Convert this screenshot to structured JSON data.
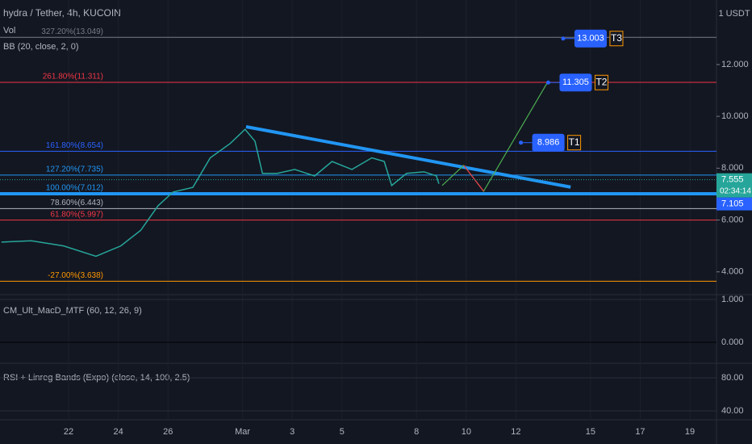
{
  "header": {
    "symbol": "hydra / Tether, 4h, KUCOIN",
    "vol": "Vol",
    "bb": "BB (20, close, 2, 0)"
  },
  "chart_data": {
    "type": "line",
    "currency": "1 USDT",
    "color": "#26a69a",
    "x": [
      -2.7,
      -1.5,
      -0.2,
      1.1,
      2.1,
      2.9,
      3.6,
      4.2,
      5.0,
      5.7,
      6.5,
      7.1,
      7.5,
      7.8,
      8.4,
      9.1,
      9.9,
      10.6,
      11.4,
      12.2,
      12.7,
      13.0,
      13.6,
      14.3,
      14.8,
      14.9
    ],
    "values": [
      5.15,
      5.2,
      5.0,
      4.6,
      5.0,
      5.6,
      6.55,
      7.08,
      7.26,
      8.4,
      8.95,
      9.5,
      9.04,
      7.8,
      7.8,
      7.95,
      7.7,
      8.26,
      7.95,
      8.4,
      8.26,
      7.33,
      7.8,
      7.86,
      7.7,
      7.4
    ],
    "xlim": [
      -2.76,
      26.07
    ],
    "ylim": [
      3.12,
      14.49
    ],
    "xticks": [
      {
        "value": 0,
        "label": "22"
      },
      {
        "value": 2,
        "label": "24"
      },
      {
        "value": 4,
        "label": "26"
      },
      {
        "value": 7,
        "label": "Mar"
      },
      {
        "value": 9,
        "label": "3"
      },
      {
        "value": 11,
        "label": "5"
      },
      {
        "value": 14,
        "label": "8"
      },
      {
        "value": 16,
        "label": "10"
      },
      {
        "value": 18,
        "label": "12"
      },
      {
        "value": 21,
        "label": "15"
      },
      {
        "value": 23,
        "label": "17"
      },
      {
        "value": 25,
        "label": "19"
      }
    ],
    "yticks": [
      {
        "value": 12,
        "label": "12.000"
      },
      {
        "value": 10,
        "label": "10.000"
      },
      {
        "value": 8,
        "label": "8.000"
      },
      {
        "value": 6,
        "label": "6.000"
      },
      {
        "value": 4,
        "label": "4.000"
      }
    ],
    "fib_levels": [
      {
        "value": 13.049,
        "label": "327.20%(13.049)",
        "color": "#787b86"
      },
      {
        "value": 11.311,
        "label": "261.80%(11.311)",
        "color": "#f23645"
      },
      {
        "value": 8.654,
        "label": "161.80%(8.654)",
        "color": "#2962ff"
      },
      {
        "value": 7.735,
        "label": "127.20%(7.735)",
        "color": "#2196f3"
      },
      {
        "value": 7.012,
        "label": "100.00%(7.012)",
        "color": "#2196f3"
      },
      {
        "value": 6.443,
        "label": "78.60%(6.443)",
        "color": "#b2b5be"
      },
      {
        "value": 5.997,
        "label": "61.80%(5.997)",
        "color": "#f23645"
      },
      {
        "value": 3.638,
        "label": "-27.00%(3.638)",
        "color": "#ff9800"
      }
    ],
    "targets": [
      {
        "value": 13.003,
        "name": "T3",
        "x": 19.9
      },
      {
        "value": 11.305,
        "name": "T2",
        "x": 19.3
      },
      {
        "value": 8.986,
        "name": "T1",
        "x": 18.2
      }
    ],
    "trendline": {
      "x": [
        7.14,
        20.2
      ],
      "values": [
        9.6,
        7.27
      ],
      "color": "#2196f3"
    },
    "projection_up": {
      "x": [
        15.03,
        15.9,
        16.7,
        19.25
      ],
      "values": [
        7.33,
        8.11,
        7.11,
        11.28
      ],
      "color": "#4caf50"
    },
    "projection_down": {
      "x": [
        15.9,
        16.7
      ],
      "values": [
        8.11,
        7.11
      ],
      "color": "#f23645"
    },
    "last_price": 7.555,
    "countdown": "02:34:14",
    "support": 7.105,
    "macd": {
      "title": "CM_Ult_MacD_MTF (60, 12, 26, 9)",
      "ylim": [
        -0.49,
        1.113
      ],
      "yticks": [
        {
          "value": 1,
          "label": "1.000"
        },
        {
          "value": 0,
          "label": "0.000"
        }
      ]
    },
    "rsi": {
      "title": "RSI + Linreg Bands (Expo) (close, 14, 100, 2.5)",
      "ylim": [
        29.3,
        97.6
      ],
      "yticks": [
        {
          "value": 80,
          "label": "80.00"
        },
        {
          "value": 40,
          "label": "40.00"
        }
      ]
    }
  }
}
